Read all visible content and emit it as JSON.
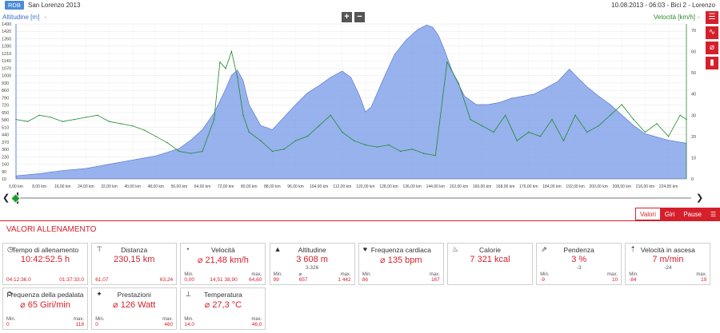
{
  "header": {
    "badge": "RDB",
    "title": "San Lorenzo 2013",
    "session": "10.08.2013  -  06:03  -  Bici 2  -  Lorenzo"
  },
  "chart_data": {
    "type": "area",
    "left_axis": {
      "label": "Altitudine [m]",
      "ticks": [
        "1490",
        "1420",
        "1350",
        "1280",
        "1210",
        "1140",
        "1070",
        "1000",
        "930",
        "860",
        "790",
        "720",
        "650",
        "580",
        "510",
        "440",
        "370",
        "300",
        "230",
        "160",
        "90",
        "10"
      ],
      "ylim": [
        10,
        1490
      ]
    },
    "right_axis": {
      "label": "Velocità [km/h]",
      "ticks": [
        "70",
        "60",
        "50",
        "40",
        "30",
        "20",
        "10",
        "0"
      ],
      "ylim": [
        0,
        73
      ]
    },
    "x_axis": {
      "ticks": [
        "0,00 km",
        "8,00 km",
        "16,00 km",
        "24,00 km",
        "32,00 km",
        "40,00 km",
        "48,00 km",
        "56,00 km",
        "64,00 km",
        "72,00 km",
        "80,00 km",
        "88,00 km",
        "96,00 km",
        "104,00 km",
        "112,00 km",
        "120,00 km",
        "128,00 km",
        "136,00 km",
        "144,00 km",
        "152,00 km",
        "160,00 km",
        "168,00 km",
        "176,00 km",
        "184,00 km",
        "192,00 km",
        "200,00 km",
        "208,00 km",
        "216,00 km",
        "224,00 km"
      ],
      "xlim": [
        0,
        230.15
      ]
    },
    "series": [
      {
        "name": "Altitudine [m]",
        "color": "#7e9fe8",
        "x": [
          0,
          8,
          16,
          24,
          32,
          40,
          48,
          56,
          60,
          64,
          68,
          72,
          74,
          76,
          78,
          80,
          84,
          88,
          92,
          96,
          100,
          104,
          108,
          112,
          115,
          118,
          120,
          122,
          126,
          130,
          134,
          138,
          141,
          143,
          145,
          147,
          150,
          154,
          158,
          162,
          166,
          170,
          174,
          178,
          182,
          186,
          188,
          190,
          192,
          196,
          200,
          204,
          208,
          212,
          216,
          220,
          224,
          228,
          230.15
        ],
        "y": [
          40,
          60,
          90,
          110,
          150,
          190,
          230,
          300,
          380,
          480,
          640,
          870,
          1000,
          1050,
          950,
          720,
          520,
          480,
          600,
          720,
          830,
          900,
          980,
          1040,
          980,
          800,
          650,
          700,
          960,
          1200,
          1340,
          1440,
          1480,
          1460,
          1380,
          1250,
          1020,
          800,
          720,
          720,
          740,
          780,
          800,
          820,
          880,
          940,
          1000,
          1060,
          1000,
          890,
          800,
          720,
          620,
          520,
          440,
          410,
          380,
          360,
          350
        ]
      },
      {
        "name": "Velocità [km/h]",
        "color": "#1f8a2a",
        "x": [
          0,
          4,
          8,
          12,
          16,
          20,
          24,
          28,
          32,
          36,
          40,
          44,
          48,
          52,
          56,
          60,
          64,
          68,
          70,
          72,
          74,
          76,
          78,
          80,
          84,
          88,
          92,
          96,
          100,
          104,
          108,
          112,
          116,
          120,
          124,
          128,
          132,
          136,
          140,
          144,
          148,
          152,
          156,
          160,
          164,
          168,
          172,
          176,
          180,
          184,
          188,
          192,
          196,
          200,
          204,
          208,
          212,
          216,
          220,
          224,
          228,
          230.15
        ],
        "y": [
          28,
          27,
          30,
          29,
          27,
          28,
          29,
          30,
          27,
          26,
          25,
          23,
          20,
          17,
          13,
          12,
          13,
          28,
          55,
          52,
          60,
          48,
          30,
          22,
          18,
          13,
          14,
          18,
          20,
          25,
          30,
          22,
          18,
          16,
          15,
          16,
          13,
          14,
          12,
          11,
          55,
          45,
          28,
          25,
          22,
          30,
          18,
          22,
          20,
          28,
          18,
          30,
          22,
          25,
          30,
          35,
          28,
          22,
          26,
          20,
          30,
          28
        ]
      }
    ],
    "grid": true
  },
  "chart_buttons": {
    "zoom_in": "+",
    "zoom_out": "−"
  },
  "slider": {
    "left_arrow": "❮",
    "right_arrow": "❯"
  },
  "tabs": {
    "valori": "Valori",
    "giri": "Giri",
    "pause": "Pause"
  },
  "section_title": "VALORI ALLENAMENTO",
  "cards": [
    {
      "title": "Tempo di allenamento",
      "value": "10:42:52.5 h",
      "sub": "",
      "min_label": "",
      "min": "04:12:36.0",
      "mid_label": "",
      "mid": "",
      "max_label": "",
      "max": "01:37:33.0"
    },
    {
      "title": "Distanza",
      "value": "230,15 km",
      "sub": "",
      "min_label": "",
      "min": "61,07",
      "mid_label": "",
      "mid": "",
      "max_label": "",
      "max": "63,24"
    },
    {
      "title": "Velocità",
      "value": "⌀ 21,48 km/h",
      "sub": "",
      "min_label": "Min.",
      "min": "0,00",
      "mid_label": "",
      "mid": "14,51   38,90",
      "max_label": "max.",
      "max": "64,60"
    },
    {
      "title": "Altitudine",
      "value": "3 608 m",
      "sub": "3.326",
      "min_label": "Min.",
      "min": "99",
      "mid_label": "⌀",
      "mid": "657",
      "max_label": "max.",
      "max": "1 442"
    },
    {
      "title": "Frequenza cardiaca",
      "value": "⌀ 135 bpm",
      "sub": "",
      "min_label": "Min.",
      "min": "86",
      "mid_label": "",
      "mid": "",
      "max_label": "max.",
      "max": "167"
    },
    {
      "title": "Calorie",
      "value": "7 321 kcal",
      "sub": "",
      "min_label": "",
      "min": "",
      "mid_label": "",
      "mid": "",
      "max_label": "",
      "max": ""
    },
    {
      "title": "Pendenza",
      "value": "3 %",
      "sub": "-3",
      "min_label": "Min.",
      "min": "-9",
      "mid_label": "",
      "mid": "",
      "max_label": "max.",
      "max": "10"
    },
    {
      "title": "Velocità in ascesa",
      "value": "7 m/min",
      "sub": "-24",
      "min_label": "Min.",
      "min": "-84",
      "mid_label": "",
      "mid": "",
      "max_label": "max.",
      "max": "19"
    },
    {
      "title": "Frequenza della pedalata",
      "value": "⌀ 65 Giri/min",
      "sub": "",
      "min_label": "Min.",
      "min": "0",
      "mid_label": "",
      "mid": "",
      "max_label": "max.",
      "max": "118"
    },
    {
      "title": "Prestazioni",
      "value": "⌀ 126 Watt",
      "sub": "",
      "min_label": "Min.",
      "min": "0",
      "mid_label": "",
      "mid": "",
      "max_label": "max.",
      "max": "460"
    },
    {
      "title": "Temperatura",
      "value": "⌀ 27,3 °C",
      "sub": "",
      "min_label": "Min.",
      "min": "14,0",
      "mid_label": "",
      "mid": "",
      "max_label": "max.",
      "max": "46,0"
    }
  ]
}
